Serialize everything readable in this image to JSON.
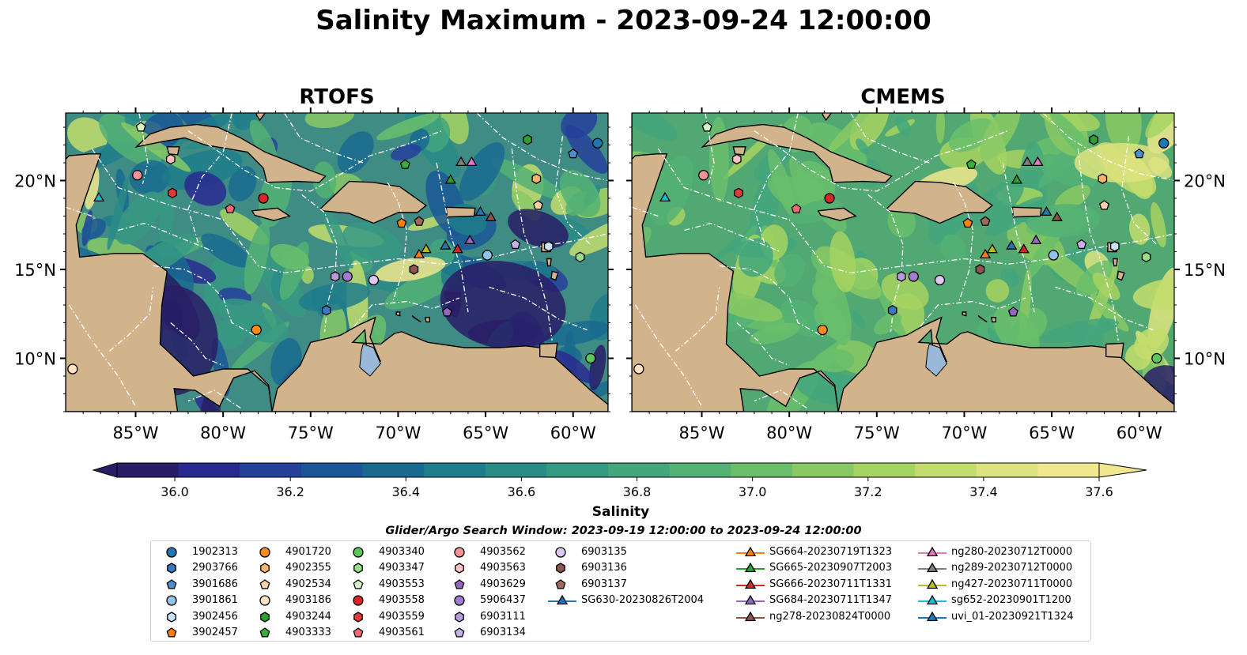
{
  "title": "Salinity Maximum - 2023-09-24 12:00:00",
  "panels": [
    {
      "title": "RTOFS",
      "bg": "#3f8c84"
    },
    {
      "title": "CMEMS",
      "bg": "#52a872"
    }
  ],
  "colors": {
    "land": "#d2b48c",
    "lake": "#9ab8d8",
    "coast": "#000000",
    "eez": "#ffffff"
  },
  "map": {
    "lon_range": [
      -89,
      -58
    ],
    "lat_range": [
      7,
      23.8
    ],
    "lon_ticks": [
      "85°W",
      "80°W",
      "75°W",
      "70°W",
      "65°W",
      "60°W"
    ],
    "lon_tick_values": [
      -85,
      -80,
      -75,
      -70,
      -65,
      -60
    ],
    "lat_ticks": [
      "20°N",
      "15°N",
      "10°N"
    ],
    "lat_tick_values": [
      20,
      15,
      10
    ]
  },
  "colorbar": {
    "label": "Salinity",
    "min": 35.9,
    "max": 37.6,
    "extend": "both",
    "ticks": [
      "36.0",
      "36.2",
      "36.4",
      "36.6",
      "36.8",
      "37.0",
      "37.2",
      "37.4",
      "37.6"
    ],
    "tick_values": [
      36.0,
      36.2,
      36.4,
      36.6,
      36.8,
      37.0,
      37.2,
      37.4,
      37.6
    ],
    "colors": [
      "#291d66",
      "#2a2991",
      "#26409b",
      "#1b5796",
      "#1a6a90",
      "#1e7c8b",
      "#2a8b87",
      "#369982",
      "#43a67c",
      "#53b274",
      "#6abe6b",
      "#88c964",
      "#a6d462",
      "#c3dd6c",
      "#dde37f",
      "#f0e78e"
    ]
  },
  "legend": {
    "title": "Glider/Argo Search Window: 2023-09-19 12:00:00 to 2023-09-24 12:00:00",
    "columns": [
      [
        {
          "label": "1902313",
          "marker": "circle",
          "color": "#1f77b4"
        },
        {
          "label": "2903766",
          "marker": "hexagon",
          "color": "#3a78c0"
        },
        {
          "label": "3901686",
          "marker": "pentagon",
          "color": "#4a8fd0"
        },
        {
          "label": "3901861",
          "marker": "circle",
          "color": "#92c3ea"
        },
        {
          "label": "3902456",
          "marker": "hexagon",
          "color": "#cce3f7"
        },
        {
          "label": "3902457",
          "marker": "pentagon",
          "color": "#ff7f0e"
        }
      ],
      [
        {
          "label": "4901720",
          "marker": "circle",
          "color": "#ff8c1a"
        },
        {
          "label": "4902355",
          "marker": "hexagon",
          "color": "#ffb36b"
        },
        {
          "label": "4902534",
          "marker": "pentagon",
          "color": "#ffd2a6"
        },
        {
          "label": "4903186",
          "marker": "circle",
          "color": "#ffe3c4"
        },
        {
          "label": "4903244",
          "marker": "hexagon",
          "color": "#2ca02c"
        },
        {
          "label": "4903333",
          "marker": "pentagon",
          "color": "#37b135"
        }
      ],
      [
        {
          "label": "4903340",
          "marker": "circle",
          "color": "#5fc55e"
        },
        {
          "label": "4903347",
          "marker": "hexagon",
          "color": "#99df8a"
        },
        {
          "label": "4903553",
          "marker": "pentagon",
          "color": "#d3f5c5"
        },
        {
          "label": "4903558",
          "marker": "circle",
          "color": "#d62728"
        },
        {
          "label": "4903559",
          "marker": "hexagon",
          "color": "#e03a3c"
        },
        {
          "label": "4903561",
          "marker": "pentagon",
          "color": "#ef6a6b"
        }
      ],
      [
        {
          "label": "4903562",
          "marker": "circle",
          "color": "#f59494"
        },
        {
          "label": "4903563",
          "marker": "hexagon",
          "color": "#ffc3c3"
        },
        {
          "label": "4903629",
          "marker": "pentagon",
          "color": "#9467bd"
        },
        {
          "label": "5906437",
          "marker": "circle",
          "color": "#a07bd0"
        },
        {
          "label": "6903111",
          "marker": "hexagon",
          "color": "#b79ae0"
        },
        {
          "label": "6903134",
          "marker": "pentagon",
          "color": "#c8b1ea"
        }
      ],
      [
        {
          "label": "6903135",
          "marker": "circle",
          "color": "#ddc8f3"
        },
        {
          "label": "6903136",
          "marker": "hexagon",
          "color": "#8c564b"
        },
        {
          "label": "6903137",
          "marker": "pentagon",
          "color": "#a06a5a"
        },
        {
          "label": "SG630-20230826T2004",
          "marker": "triangle",
          "color": "#1f77b4"
        }
      ],
      [
        {
          "label": "SG664-20230719T1323",
          "marker": "triangle",
          "color": "#ff7f0e"
        },
        {
          "label": "SG665-20230907T2003",
          "marker": "triangle",
          "color": "#2ca02c"
        },
        {
          "label": "SG666-20230711T1331",
          "marker": "triangle",
          "color": "#d62728"
        },
        {
          "label": "SG684-20230711T1347",
          "marker": "triangle",
          "color": "#9467bd"
        },
        {
          "label": "ng278-20230824T0000",
          "marker": "triangle",
          "color": "#8c564b"
        }
      ],
      [
        {
          "label": "ng280-20230712T0000",
          "marker": "triangle",
          "color": "#e377c2"
        },
        {
          "label": "ng289-20230712T0000",
          "marker": "triangle",
          "color": "#7f7f7f"
        },
        {
          "label": "ng427-20230711T0000",
          "marker": "triangle",
          "color": "#bcbd22"
        },
        {
          "label": "sg652-20230901T1200",
          "marker": "triangle",
          "color": "#17becf"
        },
        {
          "label": "uvi_01-20230921T1324",
          "marker": "triangle",
          "color": "#1f77b4"
        }
      ]
    ]
  },
  "chart_data": {
    "type": "scatter",
    "title": "Salinity Maximum - 2023-09-24 12:00:00",
    "subplots": [
      "RTOFS",
      "CMEMS"
    ],
    "colorbar_label": "Salinity",
    "xlim": [
      -89,
      -58
    ],
    "ylim": [
      7,
      23.8
    ],
    "points": [
      {
        "name": "1902313",
        "lon": -58.6,
        "lat": 22.1
      },
      {
        "name": "2903766",
        "lon": -74.1,
        "lat": 12.7
      },
      {
        "name": "3901686",
        "lon": -60.0,
        "lat": 21.5
      },
      {
        "name": "3901861",
        "lon": -64.9,
        "lat": 15.8
      },
      {
        "name": "3902456",
        "lon": -61.4,
        "lat": 16.3
      },
      {
        "name": "3902457",
        "lon": -69.8,
        "lat": 17.6
      },
      {
        "name": "4901720",
        "lon": -78.1,
        "lat": 11.6
      },
      {
        "name": "4902355",
        "lon": -62.1,
        "lat": 20.1
      },
      {
        "name": "4902534",
        "lon": -62.0,
        "lat": 18.6
      },
      {
        "name": "4903186",
        "lon": -88.6,
        "lat": 9.4
      },
      {
        "name": "4903244",
        "lon": -62.6,
        "lat": 22.3
      },
      {
        "name": "4903333",
        "lon": -69.6,
        "lat": 20.9
      },
      {
        "name": "4903340",
        "lon": -59.0,
        "lat": 10.0
      },
      {
        "name": "4903347",
        "lon": -59.6,
        "lat": 15.7
      },
      {
        "name": "4903553",
        "lon": -84.7,
        "lat": 23.0
      },
      {
        "name": "4903558",
        "lon": -77.7,
        "lat": 19.0
      },
      {
        "name": "4903559",
        "lon": -82.9,
        "lat": 19.3
      },
      {
        "name": "4903561",
        "lon": -79.6,
        "lat": 18.4
      },
      {
        "name": "4903562",
        "lon": -84.9,
        "lat": 20.3
      },
      {
        "name": "4903563",
        "lon": -83.0,
        "lat": 21.2
      },
      {
        "name": "4903629",
        "lon": -67.2,
        "lat": 12.6
      },
      {
        "name": "5906437",
        "lon": -72.9,
        "lat": 14.6
      },
      {
        "name": "6903111",
        "lon": -73.6,
        "lat": 14.6
      },
      {
        "name": "6903134",
        "lon": -63.3,
        "lat": 16.4
      },
      {
        "name": "6903135",
        "lon": -71.4,
        "lat": 14.4
      },
      {
        "name": "6903136",
        "lon": -69.1,
        "lat": 15.0
      },
      {
        "name": "6903137",
        "lon": -68.8,
        "lat": 17.7
      },
      {
        "name": "SG630-20230826T2004",
        "lon": -65.3,
        "lat": 18.2
      },
      {
        "name": "SG664-20230719T1323",
        "lon": -68.8,
        "lat": 15.8
      },
      {
        "name": "SG665-20230907T2003",
        "lon": -67.0,
        "lat": 20.0
      },
      {
        "name": "SG666-20230711T1331",
        "lon": -66.6,
        "lat": 16.1
      },
      {
        "name": "SG684-20230711T1347",
        "lon": -65.9,
        "lat": 16.6
      },
      {
        "name": "ng278-20230824T0000",
        "lon": -64.7,
        "lat": 17.9
      },
      {
        "name": "ng280-20230712T0000",
        "lon": -65.8,
        "lat": 21.0
      },
      {
        "name": "ng289-20230712T0000",
        "lon": -66.4,
        "lat": 21.0
      },
      {
        "name": "ng427-20230711T0000",
        "lon": -68.4,
        "lat": 16.1
      },
      {
        "name": "sg652-20230901T1200",
        "lon": -87.1,
        "lat": 19.0
      },
      {
        "name": "uvi_01-20230921T1324",
        "lon": -67.3,
        "lat": 16.3
      }
    ]
  }
}
